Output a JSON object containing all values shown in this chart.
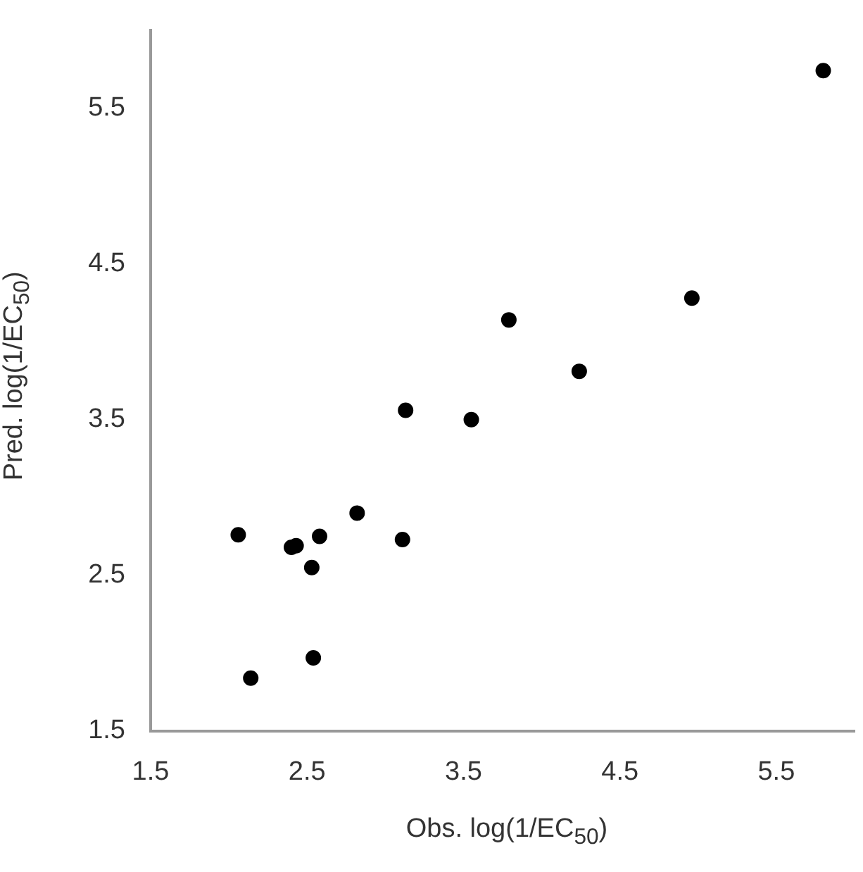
{
  "chart_data": {
    "type": "scatter",
    "xlabel": "Obs. log(1/EC$_{50}$)",
    "ylabel": "Pred. log(1/EC$_{50}$)",
    "x": [
      2.06,
      2.4,
      2.43,
      2.58,
      2.82,
      3.11,
      2.53,
      2.54,
      2.14,
      5.8,
      4.96,
      3.79,
      4.24,
      3.55,
      3.13
    ],
    "values": [
      2.76,
      2.68,
      2.69,
      2.75,
      2.9,
      2.73,
      2.55,
      1.97,
      1.84,
      5.74,
      4.28,
      4.14,
      3.81,
      3.5,
      3.56
    ],
    "color": "#000000",
    "marker": "circle",
    "xlim": [
      1.5,
      6.0
    ],
    "ylim": [
      1.5,
      6.0
    ],
    "xticks": [
      1.5,
      2.5,
      3.5,
      4.5,
      5.5
    ],
    "yticks": [
      1.5,
      2.5,
      3.5,
      4.5,
      5.5
    ],
    "grid": false,
    "legend": false
  }
}
